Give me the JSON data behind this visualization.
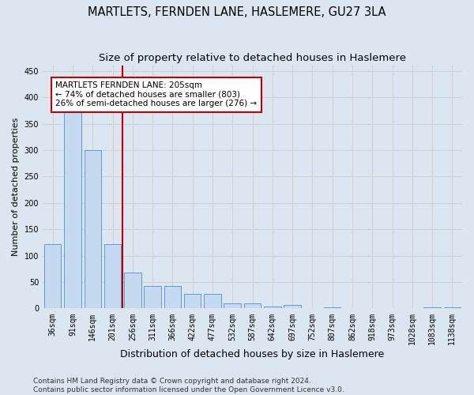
{
  "title": "MARTLETS, FERNDEN LANE, HASLEMERE, GU27 3LA",
  "subtitle": "Size of property relative to detached houses in Haslemere",
  "xlabel": "Distribution of detached houses by size in Haslemere",
  "ylabel": "Number of detached properties",
  "bar_labels": [
    "36sqm",
    "91sqm",
    "146sqm",
    "201sqm",
    "256sqm",
    "311sqm",
    "366sqm",
    "422sqm",
    "477sqm",
    "532sqm",
    "587sqm",
    "642sqm",
    "697sqm",
    "752sqm",
    "807sqm",
    "862sqm",
    "918sqm",
    "973sqm",
    "1028sqm",
    "1083sqm",
    "1138sqm"
  ],
  "bar_values": [
    122,
    375,
    300,
    122,
    68,
    42,
    42,
    28,
    28,
    9,
    9,
    4,
    6,
    1,
    2,
    1,
    0,
    1,
    0,
    2,
    2
  ],
  "bar_color": "#c5d9f0",
  "bar_edge_color": "#5b9bd5",
  "vline_color": "#c00000",
  "annotation_text": "MARTLETS FERNDEN LANE: 205sqm\n← 74% of detached houses are smaller (803)\n26% of semi-detached houses are larger (276) →",
  "annotation_box_color": "#ffffff",
  "annotation_box_edge": "#c00000",
  "ylim": [
    0,
    460
  ],
  "yticks": [
    0,
    50,
    100,
    150,
    200,
    250,
    300,
    350,
    400,
    450
  ],
  "grid_color": "#d0d0d0",
  "background_color": "#dce6f1",
  "footer_text": "Contains HM Land Registry data © Crown copyright and database right 2024.\nContains public sector information licensed under the Open Government Licence v3.0.",
  "title_fontsize": 10.5,
  "subtitle_fontsize": 9.5,
  "xlabel_fontsize": 9,
  "ylabel_fontsize": 8,
  "tick_fontsize": 7,
  "footer_fontsize": 6.5,
  "annotation_fontsize": 7.5
}
